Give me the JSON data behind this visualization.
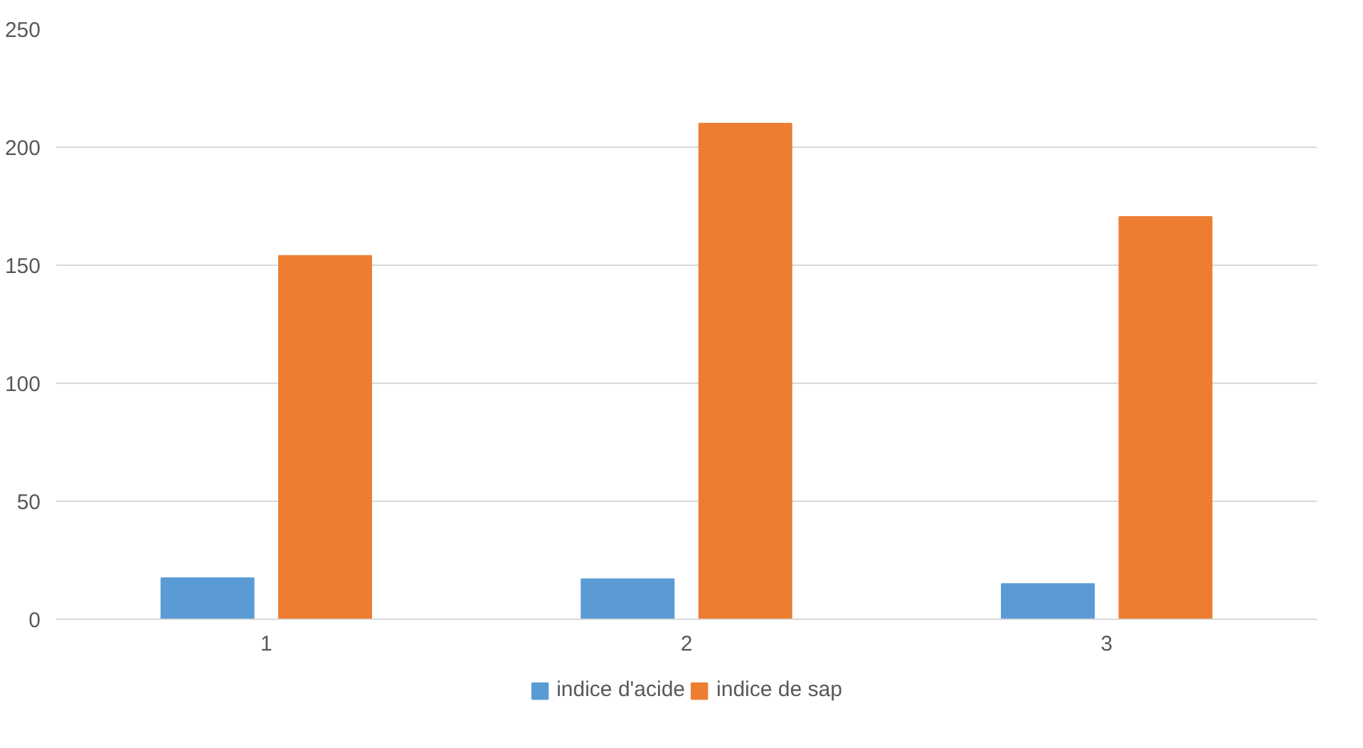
{
  "chart_data": {
    "type": "bar",
    "categories": [
      "1",
      "2",
      "3"
    ],
    "series": [
      {
        "name": "indice d'acide",
        "color": "#5b9bd5",
        "values": [
          17.5,
          17,
          15
        ]
      },
      {
        "name": "indice de sap",
        "color": "#ed7d31",
        "values": [
          154,
          210,
          170.5
        ]
      }
    ],
    "ylim": [
      0,
      250
    ],
    "yticks": [
      0,
      50,
      100,
      150,
      200,
      250
    ],
    "grid": "y",
    "legend": "bottom"
  }
}
